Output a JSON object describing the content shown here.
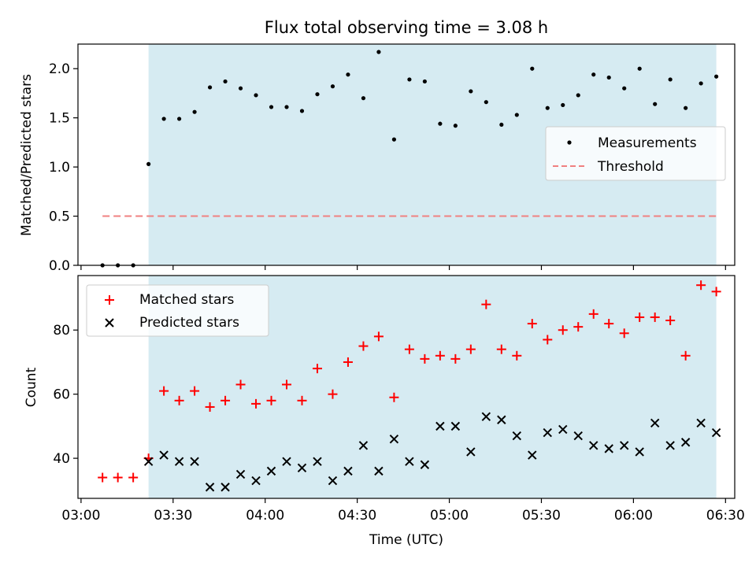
{
  "chart_data": {
    "title": "Flux total observing time = 3.08 h",
    "xlabel": "Time (UTC)",
    "x_tick_labels": [
      "03:00",
      "03:30",
      "04:00",
      "04:30",
      "05:00",
      "05:30",
      "06:00",
      "06:30"
    ],
    "x_tick_values": [
      "03:00",
      "03:30",
      "04:00",
      "04:30",
      "05:00",
      "05:30",
      "06:00",
      "06:30"
    ],
    "xlim": [
      "02:59",
      "06:33"
    ],
    "shaded_interval": [
      "03:22",
      "06:27"
    ],
    "shade_color": "#add8e6",
    "x": [
      "03:07",
      "03:12",
      "03:17",
      "03:22",
      "03:27",
      "03:32",
      "03:37",
      "03:42",
      "03:47",
      "03:52",
      "03:57",
      "04:02",
      "04:07",
      "04:12",
      "04:17",
      "04:22",
      "04:27",
      "04:32",
      "04:37",
      "04:42",
      "04:47",
      "04:52",
      "04:57",
      "05:02",
      "05:07",
      "05:12",
      "05:17",
      "05:22",
      "05:27",
      "05:32",
      "05:37",
      "05:42",
      "05:47",
      "05:52",
      "05:57",
      "06:02",
      "06:07",
      "06:12",
      "06:17",
      "06:22",
      "06:27"
    ],
    "charts": [
      {
        "type": "scatter",
        "ylabel": "Matched/Predicted stars",
        "ylim": [
          0,
          2.25
        ],
        "yticks": [
          "0.0",
          "0.5",
          "1.0",
          "1.5",
          "2.0"
        ],
        "ytick_values": [
          0,
          0.5,
          1.0,
          1.5,
          2.0
        ],
        "legend_position": "center-right",
        "series": [
          {
            "name": "Measurements",
            "marker": "dot",
            "color": "#000000",
            "values": [
              0,
              0,
              0,
              1.03,
              1.49,
              1.49,
              1.56,
              1.81,
              1.87,
              1.8,
              1.73,
              1.61,
              1.61,
              1.57,
              1.74,
              1.82,
              1.94,
              1.7,
              2.17,
              1.28,
              1.89,
              1.87,
              1.44,
              1.42,
              1.77,
              1.66,
              1.43,
              1.53,
              2.0,
              1.6,
              1.63,
              1.73,
              1.94,
              1.91,
              1.8,
              2.0,
              1.64,
              1.89,
              1.6,
              1.85,
              1.92
            ]
          },
          {
            "name": "Threshold",
            "marker": "dashed-line",
            "color": "#f08080",
            "values": [
              0.5,
              0.5
            ],
            "x": [
              "03:07",
              "06:27"
            ]
          }
        ]
      },
      {
        "type": "scatter",
        "ylabel": "Count",
        "ylim": [
          27.5,
          97
        ],
        "yticks": [
          "40",
          "60",
          "80"
        ],
        "ytick_values": [
          40,
          60,
          80
        ],
        "legend_position": "top-left",
        "series": [
          {
            "name": "Matched stars",
            "marker": "plus",
            "color": "#ff0000",
            "values": [
              34,
              34,
              34,
              40,
              61,
              58,
              61,
              56,
              58,
              63,
              57,
              58,
              63,
              58,
              68,
              60,
              70,
              75,
              78,
              59,
              74,
              71,
              72,
              71,
              74,
              88,
              74,
              72,
              82,
              77,
              80,
              81,
              85,
              82,
              79,
              84,
              84,
              83,
              72,
              94,
              92
            ]
          },
          {
            "name": "Predicted stars",
            "marker": "x",
            "color": "#000000",
            "values": [
              null,
              null,
              null,
              39,
              41,
              39,
              39,
              31,
              31,
              35,
              33,
              36,
              39,
              37,
              39,
              33,
              36,
              44,
              36,
              46,
              39,
              38,
              50,
              50,
              42,
              53,
              52,
              47,
              41,
              48,
              49,
              47,
              44,
              43,
              44,
              42,
              51,
              44,
              45,
              51,
              48
            ]
          }
        ]
      }
    ]
  }
}
